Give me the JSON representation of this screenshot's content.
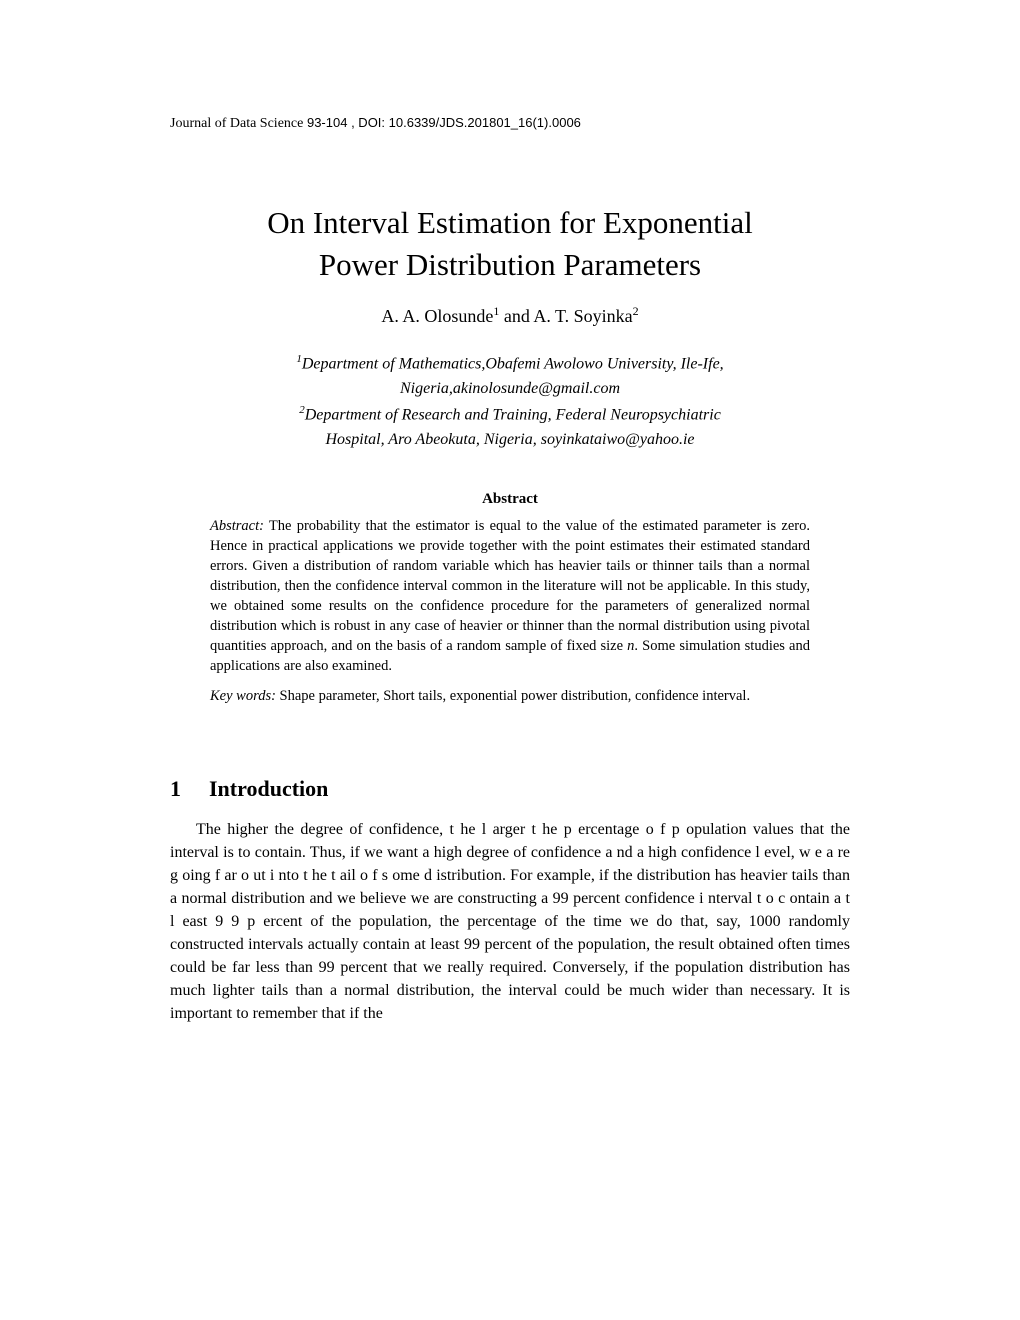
{
  "header": {
    "journal": "Journal of Data Science",
    "pages": "93-104",
    "doi": ", DOI: 10.6339/JDS.201801_16(1).0006"
  },
  "title": {
    "line1": "On Interval Estimation for Exponential",
    "line2": "Power Distribution Parameters"
  },
  "authors": {
    "a1_name": "A. A. Olosunde",
    "a1_sup": "1",
    "and": " and ",
    "a2_name": "A. T. Soyinka",
    "a2_sup": "2"
  },
  "affiliations": {
    "aff1_sup": "1",
    "aff1_line1": "Department of Mathematics,Obafemi Awolowo University, Ile-Ife,",
    "aff1_line2": "Nigeria,akinolosunde@gmail.com",
    "aff2_sup": "2",
    "aff2_line1": "Department of Research and Training, Federal Neuropsychiatric",
    "aff2_line2": "Hospital, Aro Abeokuta, Nigeria, soyinkataiwo@yahoo.ie"
  },
  "abstract": {
    "heading": "Abstract",
    "label": "Abstract:",
    "text": " The probability that the estimator is equal to the value of the estimated parameter is zero. Hence in practical applications we provide together with the point estimates their estimated standard errors. Given a distribution of random variable which has heavier tails or thinner tails than a normal distribution, then the confidence interval common in the literature will not be applicable. In this study, we obtained some results on the confidence procedure for the parameters of generalized normal distribution which is robust in any case of heavier or thinner than the normal distribution using pivotal quantities approach, and on the basis of a random sample of fixed size ",
    "text_n": "n",
    "text_after": ". Some simulation studies and applications are also examined."
  },
  "keywords": {
    "label": "Key words:",
    "text": " Shape parameter, Short tails, exponential power distribution, confidence interval."
  },
  "section1": {
    "number": "1",
    "title": "Introduction",
    "body": "The higher the degree of confidence, t he l arger t he p ercentage o f p opulation values that the interval is to contain. Thus, if we want a high degree of confidence a nd a high  confidence l evel, w e a re g oing f ar o ut i nto t he t ail o f s ome d  istribution. For example, if the distribution has heavier tails than a normal distribution and we believe we are constructing a 99 percent confidence i nterval t o c ontain a t l east 9 9 p ercent of the population, the percentage of the time we do that, say, 1000 randomly constructed intervals actually contain at least 99 percent of the population, the result obtained often times could be far less than 99 percent that we really required. Conversely, if the population distribution has much lighter tails than a normal distribution, the interval could be much wider than necessary. It is important to remember that if the"
  }
}
